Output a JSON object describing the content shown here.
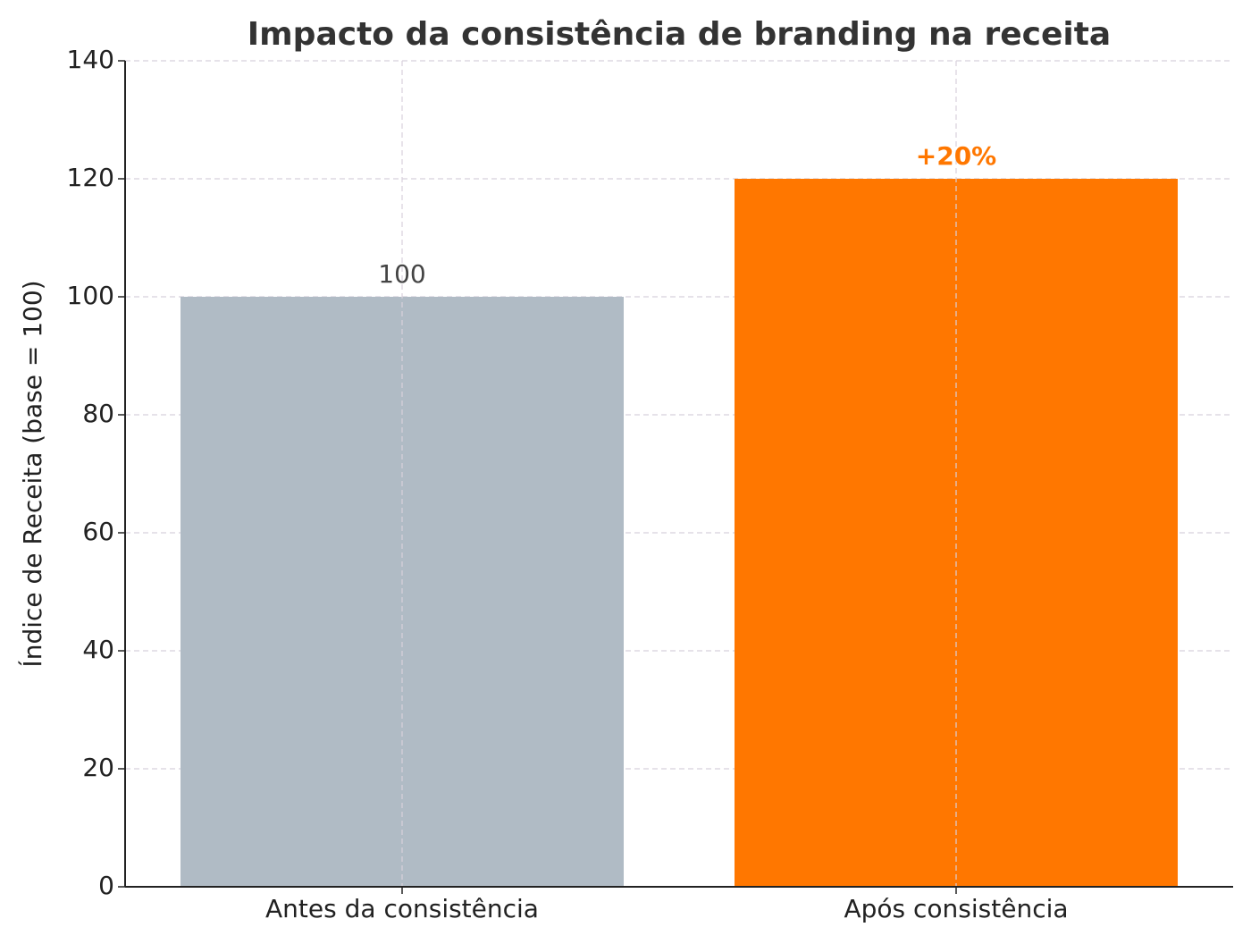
{
  "chart_data": {
    "type": "bar",
    "title": "Impacto da consistência de branding na receita",
    "y_label": "Índice de Receita (base = 100)",
    "categories": [
      "Antes da consistência",
      "Após consistência"
    ],
    "values": [
      100,
      120
    ],
    "colors": [
      "#b0bbc5",
      "#ff7700"
    ],
    "annotation": "+20%",
    "ylim": [
      0,
      140
    ],
    "yticks": [
      0,
      20,
      40,
      60,
      80,
      100,
      120,
      140
    ],
    "grid": true
  }
}
